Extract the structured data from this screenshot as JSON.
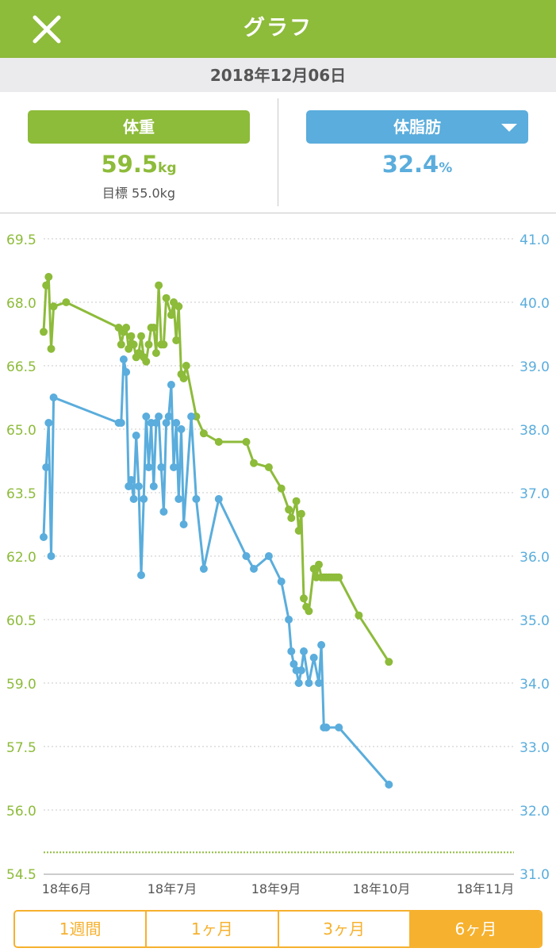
{
  "header": {
    "title": "グラフ",
    "close_icon": "close-icon"
  },
  "date": "2018年12月06日",
  "weight": {
    "label": "体重",
    "value": "59.5",
    "unit": "kg",
    "target": "目標 55.0kg"
  },
  "bodyfat": {
    "label": "体脂肪",
    "value": "32.4",
    "unit": "%",
    "dropdown_icon": "chevron-down-icon"
  },
  "tabs": [
    {
      "label": "1週間",
      "active": false
    },
    {
      "label": "1ヶ月",
      "active": false
    },
    {
      "label": "3ヶ月",
      "active": false
    },
    {
      "label": "6ヶ月",
      "active": true
    }
  ],
  "colors": {
    "green": "#8dbb3a",
    "blue": "#5aaddc",
    "orange": "#f6b12e"
  },
  "chart_data": {
    "type": "line",
    "x_tick_labels": [
      "18年6月",
      "18年7月",
      "18年9月",
      "18年10月",
      "18年11月"
    ],
    "y_left_ticks": [
      "69.5",
      "68.0",
      "66.5",
      "65.0",
      "63.5",
      "62.0",
      "60.5",
      "59.0",
      "57.5",
      "56.0",
      "54.5"
    ],
    "y_left_range": [
      54.5,
      69.5
    ],
    "y_right_ticks": [
      "41.0",
      "40.0",
      "39.0",
      "38.0",
      "37.0",
      "36.0",
      "35.0",
      "34.0",
      "33.0",
      "32.0",
      "31.0"
    ],
    "y_right_range": [
      31.0,
      41.0
    ],
    "target_line": 55.0,
    "x_range": [
      "2018-06-01",
      "2018-12-06"
    ],
    "series": [
      {
        "axis": "left",
        "x": [
          "2018-06-01",
          "2018-06-02",
          "2018-06-03",
          "2018-06-04",
          "2018-06-05",
          "2018-06-10",
          "2018-07-01",
          "2018-07-02",
          "2018-07-03",
          "2018-07-04",
          "2018-07-05",
          "2018-07-06",
          "2018-07-07",
          "2018-07-08",
          "2018-07-09",
          "2018-07-10",
          "2018-07-11",
          "2018-07-12",
          "2018-07-13",
          "2018-07-14",
          "2018-07-15",
          "2018-07-16",
          "2018-07-17",
          "2018-07-18",
          "2018-07-19",
          "2018-07-20",
          "2018-07-22",
          "2018-07-23",
          "2018-07-24",
          "2018-07-25",
          "2018-07-26",
          "2018-07-27",
          "2018-07-28",
          "2018-08-01",
          "2018-08-04",
          "2018-08-10",
          "2018-08-21",
          "2018-08-24",
          "2018-08-30",
          "2018-09-04",
          "2018-09-07",
          "2018-09-08",
          "2018-09-10",
          "2018-09-11",
          "2018-09-12",
          "2018-09-13",
          "2018-09-14",
          "2018-09-15",
          "2018-09-17",
          "2018-09-18",
          "2018-09-19",
          "2018-09-20",
          "2018-09-21",
          "2018-09-22",
          "2018-09-23",
          "2018-09-24",
          "2018-09-25",
          "2018-09-26",
          "2018-09-27",
          "2018-10-05",
          "2018-10-17"
        ],
        "values": [
          67.3,
          68.4,
          68.6,
          66.9,
          67.9,
          68.0,
          67.4,
          67.0,
          67.3,
          67.4,
          66.9,
          67.2,
          67.0,
          66.7,
          66.8,
          67.2,
          66.7,
          66.6,
          67.0,
          67.4,
          67.4,
          66.8,
          68.4,
          67.0,
          67.0,
          68.1,
          67.7,
          68.0,
          67.1,
          67.9,
          66.3,
          66.2,
          66.5,
          65.3,
          64.9,
          64.7,
          64.7,
          64.2,
          64.1,
          63.6,
          63.1,
          62.9,
          63.3,
          62.6,
          63.0,
          61.0,
          60.8,
          60.7,
          61.7,
          61.5,
          61.8,
          61.5,
          61.5,
          61.5,
          61.5,
          61.5,
          61.5,
          61.5,
          61.5,
          60.6,
          59.5
        ]
      },
      {
        "axis": "right",
        "x": [
          "2018-06-01",
          "2018-06-02",
          "2018-06-03",
          "2018-06-04",
          "2018-06-05",
          "2018-07-01",
          "2018-07-02",
          "2018-07-03",
          "2018-07-04",
          "2018-07-05",
          "2018-07-06",
          "2018-07-07",
          "2018-07-08",
          "2018-07-09",
          "2018-07-10",
          "2018-07-11",
          "2018-07-12",
          "2018-07-13",
          "2018-07-14",
          "2018-07-15",
          "2018-07-16",
          "2018-07-17",
          "2018-07-18",
          "2018-07-19",
          "2018-07-20",
          "2018-07-21",
          "2018-07-22",
          "2018-07-23",
          "2018-07-24",
          "2018-07-25",
          "2018-07-26",
          "2018-07-27",
          "2018-07-30",
          "2018-08-01",
          "2018-08-04",
          "2018-08-10",
          "2018-08-21",
          "2018-08-24",
          "2018-08-30",
          "2018-09-04",
          "2018-09-07",
          "2018-09-08",
          "2018-09-09",
          "2018-09-10",
          "2018-09-11",
          "2018-09-12",
          "2018-09-13",
          "2018-09-15",
          "2018-09-17",
          "2018-09-19",
          "2018-09-20",
          "2018-09-21",
          "2018-09-22",
          "2018-09-27",
          "2018-10-17"
        ],
        "values": [
          36.3,
          37.4,
          38.1,
          36.0,
          38.5,
          38.1,
          38.1,
          39.1,
          38.9,
          37.1,
          37.2,
          36.9,
          37.9,
          37.1,
          35.7,
          36.9,
          38.2,
          37.4,
          38.1,
          37.1,
          38.1,
          38.2,
          37.4,
          36.7,
          38.1,
          38.2,
          38.7,
          37.4,
          38.1,
          36.9,
          38.0,
          36.5,
          38.2,
          36.9,
          35.8,
          36.9,
          36.0,
          35.8,
          36.0,
          35.6,
          35.0,
          34.5,
          34.3,
          34.2,
          34.0,
          34.2,
          34.5,
          34.0,
          34.4,
          34.0,
          34.6,
          33.3,
          33.3,
          33.3,
          32.4
        ]
      }
    ]
  }
}
